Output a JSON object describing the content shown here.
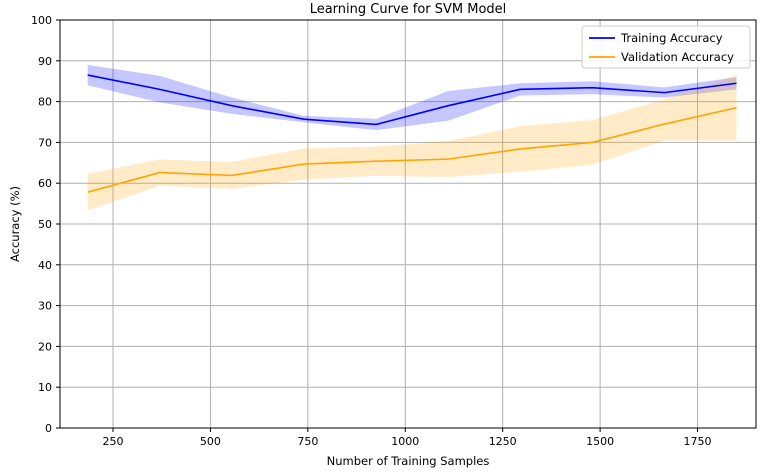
{
  "chart_data": {
    "type": "line",
    "title": "Learning Curve for SVM Model",
    "xlabel": "Number of Training Samples",
    "ylabel": "Accuracy (%)",
    "xlim": [
      114,
      1900
    ],
    "ylim": [
      0,
      100
    ],
    "xticks": [
      250,
      500,
      750,
      1000,
      1250,
      1500,
      1750
    ],
    "yticks": [
      0,
      10,
      20,
      30,
      40,
      50,
      60,
      70,
      80,
      90,
      100
    ],
    "grid": true,
    "legend_position": "top-right",
    "x": [
      185,
      370,
      555,
      740,
      925,
      1110,
      1295,
      1480,
      1665,
      1850
    ],
    "series": [
      {
        "name": "Training Accuracy",
        "color": "#0000ff",
        "values": [
          86.5,
          83.0,
          79.0,
          75.7,
          74.4,
          79.0,
          83.0,
          83.4,
          82.2,
          84.5
        ],
        "upper": [
          89.0,
          86.3,
          81.0,
          76.5,
          75.8,
          82.6,
          84.5,
          85.0,
          83.5,
          86.0
        ],
        "lower": [
          84.0,
          79.8,
          77.0,
          74.9,
          73.0,
          75.3,
          81.5,
          81.8,
          81.0,
          83.0
        ]
      },
      {
        "name": "Validation Accuracy",
        "color": "#ffa500",
        "values": [
          57.8,
          62.6,
          61.9,
          64.7,
          65.4,
          65.9,
          68.4,
          70.0,
          74.5,
          78.5
        ],
        "upper": [
          62.3,
          65.8,
          65.2,
          68.5,
          69.0,
          70.3,
          74.0,
          75.5,
          80.5,
          86.5
        ],
        "lower": [
          53.3,
          59.4,
          58.6,
          60.9,
          61.8,
          61.5,
          62.8,
          64.5,
          70.5,
          70.5
        ]
      }
    ]
  }
}
